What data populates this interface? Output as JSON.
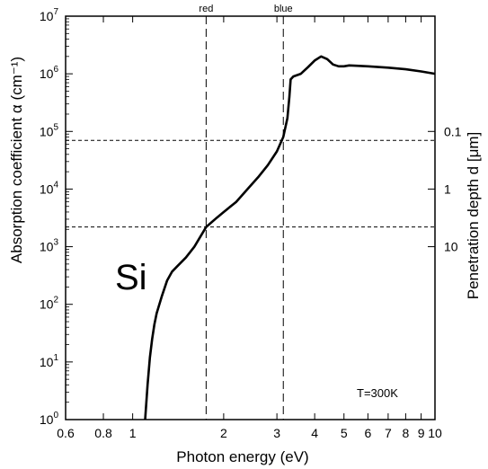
{
  "chart_data": {
    "type": "line",
    "x_scale": "log",
    "y_scale": "log",
    "xlabel": "Photon energy (eV)",
    "ylabel_left": "Absorption coefficient α (cm⁻¹)",
    "ylabel_right": "Penetration depth d [μm]",
    "xlim": [
      0.6,
      10
    ],
    "ylim": [
      1,
      10000000
    ],
    "x_ticks": [
      0.6,
      0.8,
      1,
      2,
      3,
      4,
      5,
      6,
      7,
      8,
      9,
      10
    ],
    "x_tick_labels": [
      "0.6",
      "0.8",
      "1",
      "2",
      "3",
      "4",
      "5",
      "6",
      "7",
      "8",
      "9",
      "10"
    ],
    "y_ticks": [
      1,
      10,
      100,
      1000,
      10000,
      100000,
      1000000,
      10000000
    ],
    "y_tick_labels": [
      {
        "base": "10",
        "exp": "0"
      },
      {
        "base": "10",
        "exp": "1"
      },
      {
        "base": "10",
        "exp": "2"
      },
      {
        "base": "10",
        "exp": "3"
      },
      {
        "base": "10",
        "exp": "4"
      },
      {
        "base": "10",
        "exp": "5"
      },
      {
        "base": "10",
        "exp": "6"
      },
      {
        "base": "10",
        "exp": "7"
      }
    ],
    "right_ticks": [
      {
        "label": "0.1",
        "alpha": 100000
      },
      {
        "label": "1",
        "alpha": 10000
      },
      {
        "label": "10",
        "alpha": 1000
      }
    ],
    "reference_lines": {
      "vertical": [
        {
          "label": "red",
          "x": 1.75
        },
        {
          "label": "blue",
          "x": 3.15
        }
      ],
      "horizontal": [
        {
          "alpha": 70000
        },
        {
          "alpha": 2200
        }
      ]
    },
    "series": [
      {
        "material": "Si",
        "x": [
          1.1,
          1.12,
          1.14,
          1.16,
          1.18,
          1.2,
          1.25,
          1.3,
          1.35,
          1.4,
          1.5,
          1.6,
          1.75,
          1.9,
          2.0,
          2.2,
          2.4,
          2.6,
          2.8,
          3.0,
          3.15,
          3.25,
          3.3,
          3.33,
          3.4,
          3.6,
          3.8,
          4.0,
          4.2,
          4.4,
          4.6,
          4.8,
          5.0,
          5.2,
          5.5,
          6.0,
          7.0,
          8.0,
          9.0,
          10.0
        ],
        "y": [
          1.0,
          4.0,
          12,
          25,
          45,
          70,
          140,
          260,
          370,
          450,
          650,
          1000,
          2200,
          3200,
          4000,
          6000,
          10000,
          16000,
          26000,
          45000,
          80000,
          170000,
          400000,
          800000,
          900000,
          1000000,
          1300000,
          1700000,
          2000000,
          1800000,
          1450000,
          1350000,
          1350000,
          1400000,
          1380000,
          1350000,
          1280000,
          1200000,
          1100000,
          1000000
        ]
      }
    ],
    "annotations": {
      "material": "Si",
      "temperature": "T=300K"
    }
  }
}
